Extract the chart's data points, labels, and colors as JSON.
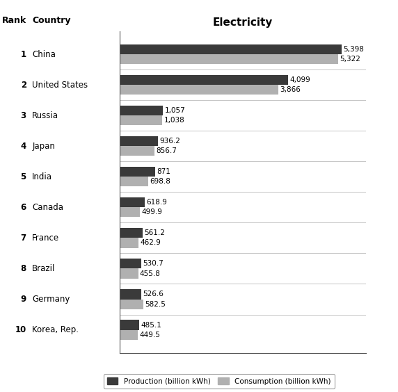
{
  "title": "Electricity",
  "col_header_rank": "Rank",
  "col_header_country": "Country",
  "countries": [
    "China",
    "United States",
    "Russia",
    "Japan",
    "India",
    "Canada",
    "France",
    "Brazil",
    "Germany",
    "Korea, Rep."
  ],
  "ranks": [
    "1",
    "2",
    "3",
    "4",
    "5",
    "6",
    "7",
    "8",
    "9",
    "10"
  ],
  "production": [
    5398,
    4099,
    1057,
    936.2,
    871,
    618.9,
    561.2,
    530.7,
    526.6,
    485.1
  ],
  "consumption": [
    5322,
    3866,
    1038,
    856.7,
    698.8,
    499.9,
    462.9,
    455.8,
    582.5,
    449.5
  ],
  "production_labels": [
    "5,398",
    "4,099",
    "1,057",
    "936.2",
    "871",
    "618.9",
    "561.2",
    "530.7",
    "526.6",
    "485.1"
  ],
  "consumption_labels": [
    "5,322",
    "3,866",
    "1,038",
    "856.7",
    "698.8",
    "499.9",
    "462.9",
    "455.8",
    "582.5",
    "449.5"
  ],
  "production_color": "#3a3a3a",
  "consumption_color": "#b0b0b0",
  "background_color": "#ffffff",
  "xlim_max": 6000,
  "bar_height": 0.32,
  "legend_production": "Production (billion kWh)",
  "legend_consumption": "Consumption (billion kWh)",
  "label_fontsize": 7.5,
  "title_fontsize": 11,
  "country_fontsize": 8.5,
  "rank_fontsize": 8.5,
  "header_fontsize": 9
}
